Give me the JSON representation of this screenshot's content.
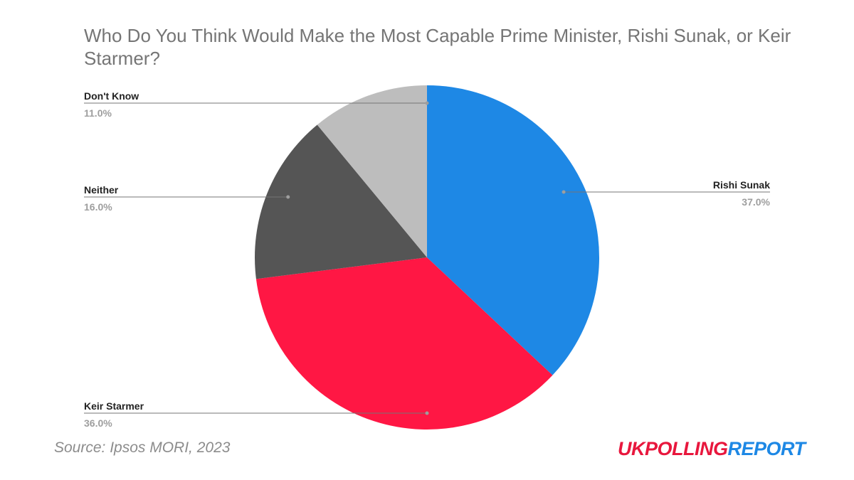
{
  "chart_data": {
    "type": "pie",
    "title": "Who Do You Think Would Make the Most Capable Prime Minister, Rishi Sunak, or Keir Starmer?",
    "slices": [
      {
        "label": "Rishi Sunak",
        "value": 37.0,
        "value_label": "37.0%",
        "color": "#1e88e5"
      },
      {
        "label": "Keir Starmer",
        "value": 36.0,
        "value_label": "36.0%",
        "color": "#ff1744"
      },
      {
        "label": "Neither",
        "value": 16.0,
        "value_label": "16.0%",
        "color": "#555555"
      },
      {
        "label": "Don't Know",
        "value": 11.0,
        "value_label": "11.0%",
        "color": "#bdbdbd"
      }
    ],
    "start_angle_deg": 0,
    "direction": "clockwise",
    "legend": "none",
    "labels": "outside with leader lines"
  },
  "source": "Source: Ipsos MORI, 2023",
  "brand": {
    "part_a": "UKPOLLING",
    "part_b": "REPORT",
    "color_a": "#e8173d",
    "color_b": "#1e88e5"
  }
}
